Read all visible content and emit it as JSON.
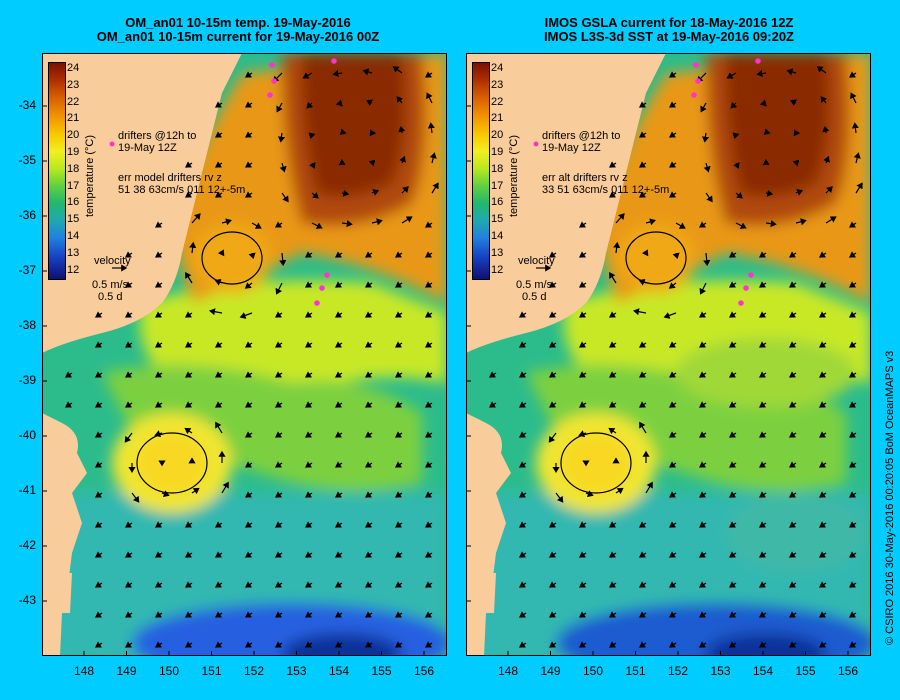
{
  "panels": [
    {
      "id": "model",
      "title_line1": "OM_an01 10-15m temp. 19-May-2016",
      "title_line2": "OM_an01 10-15m current for 19-May-2016 00Z",
      "drifters_line1": "drifters @12h to",
      "drifters_line2": "19-May 12Z",
      "err_line1": "err model drifters rv z",
      "err_line2": "51 38 63cm/s 011 12+-5m",
      "velocity_label": "velocity",
      "velocity_scale": "0.5 m/s",
      "velocity_time": "0.5 d"
    },
    {
      "id": "obs",
      "title_line1": "IMOS GSLA current for 18-May-2016 12Z",
      "title_line2": "IMOS L3S-3d SST at 19-May-2016 09:20Z",
      "drifters_line1": "drifters @12h to",
      "drifters_line2": "19-May 12Z",
      "err_line1": "err alt drifters rv z",
      "err_line2": "33 51 63cm/s 011 12+-5m",
      "velocity_label": "velocity",
      "velocity_scale": "0.5 m/s",
      "velocity_time": "0.5 d"
    }
  ],
  "colorbar": {
    "label": "temperature (°C)",
    "ticks": [
      "24",
      "23",
      "22",
      "21",
      "20",
      "19",
      "18",
      "17",
      "16",
      "15",
      "14",
      "13",
      "12"
    ]
  },
  "axes": {
    "lat_ticks": [
      "-34",
      "-35",
      "-36",
      "-37",
      "-38",
      "-39",
      "-40",
      "-41",
      "-42",
      "-43"
    ],
    "lon_ticks": [
      "148",
      "149",
      "150",
      "151",
      "152",
      "153",
      "154",
      "155",
      "156"
    ]
  },
  "credit": "© CSIRO 2016  30-May-2016 00:20:05 BoM OceanMAPS v3",
  "colors": {
    "background": "#00ccff",
    "land": "#f9cc9c",
    "drifter": "#ff33cc"
  }
}
